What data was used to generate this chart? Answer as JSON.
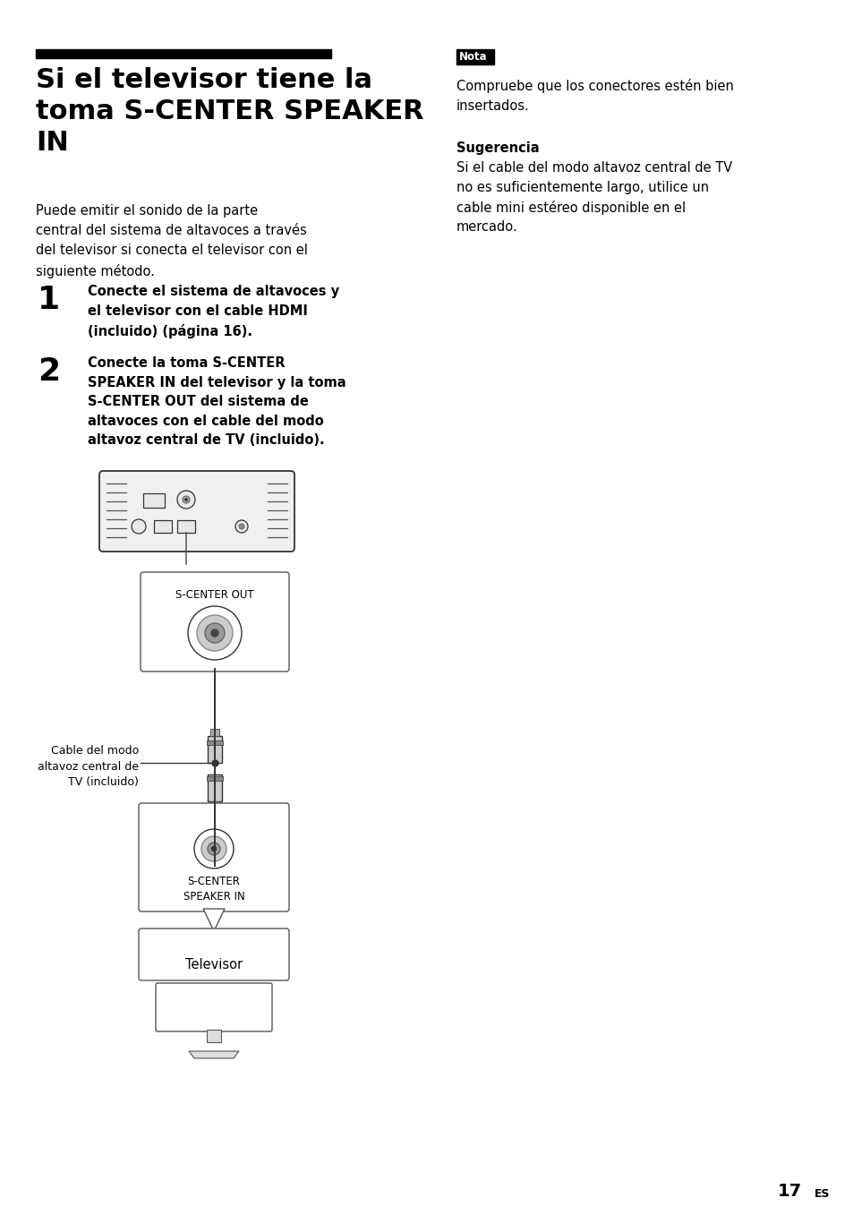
{
  "bg_color": "#ffffff",
  "page_number": "17",
  "page_number_suffix": "ES",
  "title_bar_color": "#000000",
  "title": "Si el televisor tiene la\ntoma S-CENTER SPEAKER\nIN",
  "title_fontsize": 22,
  "body_text": "Puede emitir el sonido de la parte\ncentral del sistema de altavoces a través\ndel televisor si conecta el televisor con el\nsiguiente método.",
  "body_fontsize": 10.5,
  "step1_num": "1",
  "step1_text": "Conecte el sistema de altavoces y\nel televisor con el cable HDMI\n(incluido) (página 16).",
  "step1_fontsize": 10.5,
  "step2_num": "2",
  "step2_text": "Conecte la toma S-CENTER\nSPEAKER IN del televisor y la toma\nS-CENTER OUT del sistema de\naltavoces con el cable del modo\naltavoz central de TV (incluido).",
  "step2_fontsize": 10.5,
  "nota_label": "Nota",
  "nota_text": "Compruebe que los conectores estén bien\ninsertados.",
  "sugerencia_label": "Sugerencia",
  "sugerencia_text": "Si el cable del modo altavoz central de TV\nno es suficientemente largo, utilice un\ncable mini estéreo disponible en el\nmercado.",
  "s_center_out_label": "S-CENTER OUT",
  "s_center_in_label": "S-CENTER\nSPEAKER IN",
  "cable_label": "Cable del modo\naltavoz central de\nTV (incluido)",
  "televisor_label": "Televisor"
}
